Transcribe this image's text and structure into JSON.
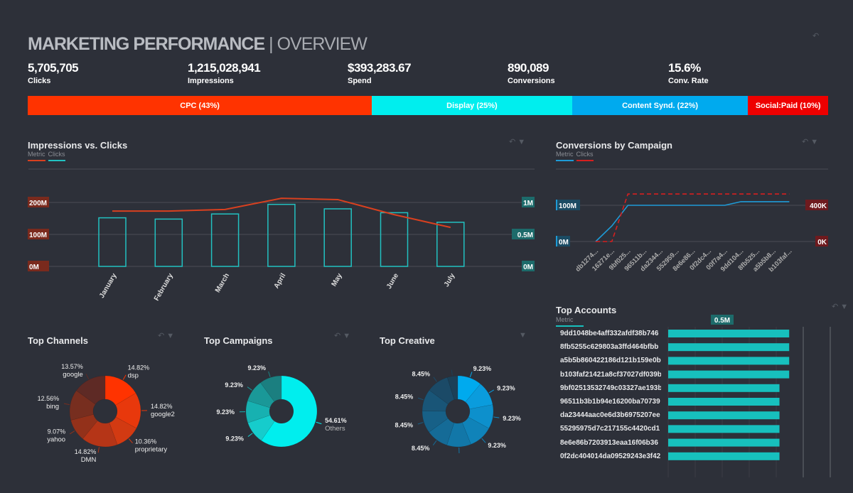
{
  "header": {
    "title": "MARKETING PERFORMANCE",
    "subtitle": "OVERVIEW",
    "separator": "|"
  },
  "kpis": [
    {
      "value": "5,705,705",
      "label": "Clicks"
    },
    {
      "value": "1,215,028,941",
      "label": "Impressions"
    },
    {
      "value": "$393,283.67",
      "label": "Spend"
    },
    {
      "value": "890,089",
      "label": "Conversions"
    },
    {
      "value": "15.6%",
      "label": "Conv. Rate"
    }
  ],
  "channel_mix": [
    {
      "label": "CPC (43%)",
      "percent": 43,
      "color": "#ff3300"
    },
    {
      "label": "Display (25%)",
      "percent": 25,
      "color": "#00eeee"
    },
    {
      "label": "Content Synd. (22%)",
      "percent": 22,
      "color": "#00aaee"
    },
    {
      "label": "Social:Paid (10%)",
      "percent": 10,
      "color": "#ee0000"
    }
  ],
  "chart_data": [
    {
      "id": "impressions_vs_clicks",
      "type": "bar",
      "title": "Impressions vs. Clicks",
      "legend": [
        "Metric",
        "Clicks"
      ],
      "categories": [
        "January",
        "February",
        "March",
        "April",
        "May",
        "June",
        "July"
      ],
      "series": [
        {
          "name": "Metric",
          "kind": "line",
          "axis": "left",
          "color": "#d9401f",
          "values": [
            173,
            173,
            178,
            213,
            209,
            162,
            122
          ]
        },
        {
          "name": "Clicks",
          "kind": "bar",
          "axis": "right",
          "color": "#22c1c1",
          "values": [
            0.76,
            0.74,
            0.82,
            0.97,
            0.9,
            0.84,
            0.69
          ]
        }
      ],
      "left_ticks": [
        "0M",
        "100M",
        "200M"
      ],
      "left_ylim": [
        0,
        200
      ],
      "right_ticks": [
        "0M",
        "0.5M",
        "1M"
      ],
      "right_ylim": [
        0,
        1
      ]
    },
    {
      "id": "conversions_by_campaign",
      "type": "line",
      "title": "Conversions by Campaign",
      "legend": [
        "Metric",
        "Clicks"
      ],
      "categories": [
        "db1274...",
        "16271e...",
        "9bf025...",
        "96511b...",
        "da2344...",
        "552959...",
        "8e6e86...",
        "0f2dc4...",
        "00f7a4...",
        "9dd104...",
        "8fb525...",
        "a5b5b8...",
        "b103faf..."
      ],
      "series": [
        {
          "name": "Metric",
          "axis": "left",
          "color": "#1e9bd7",
          "values": [
            0,
            43,
            100,
            100,
            100,
            100,
            100,
            100,
            100,
            110,
            110,
            110,
            110
          ]
        },
        {
          "name": "Clicks",
          "axis": "right",
          "color": "#d61f1f",
          "dashed": true,
          "values": [
            0,
            0,
            525,
            525,
            525,
            525,
            525,
            525,
            525,
            525,
            525,
            525,
            525
          ]
        }
      ],
      "left_ticks": [
        "0M",
        "100M"
      ],
      "left_ylim": [
        0,
        100
      ],
      "right_ticks": [
        "0K",
        "400K"
      ],
      "right_ylim": [
        0,
        400
      ]
    },
    {
      "id": "top_channels",
      "type": "pie",
      "title": "Top Channels",
      "slices": [
        {
          "label": "dsp",
          "value": 14.82,
          "text": "14.82%",
          "color": "#ff3300"
        },
        {
          "label": "google2",
          "value": 14.82,
          "text": "14.82%",
          "color": "#e8380c"
        },
        {
          "label": "proprietary",
          "value": 10.36,
          "text": "10.36%",
          "color": "#d23a12"
        },
        {
          "label": "DMN",
          "value": 14.82,
          "text": "14.82%",
          "color": "#b53517"
        },
        {
          "label": "yahoo",
          "value": 9.07,
          "text": "9.07%",
          "color": "#93311a"
        },
        {
          "label": "bing",
          "value": 12.56,
          "text": "12.56%",
          "color": "#772e1f"
        },
        {
          "label": "google",
          "value": 13.57,
          "text": "13.57%",
          "color": "#5e2a25"
        }
      ]
    },
    {
      "id": "top_campaigns",
      "type": "pie",
      "title": "Top Campaigns",
      "slices": [
        {
          "label": "Others",
          "value": 54.61,
          "text": "54.61%",
          "color": "#00eeee"
        },
        {
          "label": "",
          "value": 9.23,
          "text": "9.23%",
          "color": "#16cccc"
        },
        {
          "label": "",
          "value": 9.23,
          "text": "9.23%",
          "color": "#17b1b1"
        },
        {
          "label": "",
          "value": 9.23,
          "text": "9.23%",
          "color": "#1a9898"
        },
        {
          "label": "",
          "value": 9.23,
          "text": "9.23%",
          "color": "#1b7f80"
        }
      ]
    },
    {
      "id": "top_creative",
      "type": "pie",
      "title": "Top Creative",
      "slices": [
        {
          "value": 9.23,
          "text": "9.23%",
          "color": "#00aaee"
        },
        {
          "value": 9.23,
          "text": "9.23%",
          "color": "#0a9cdd"
        },
        {
          "value": 9.23,
          "text": "9.23%",
          "color": "#0d90cc"
        },
        {
          "value": 9.23,
          "text": "9.23%",
          "color": "#1083b9"
        },
        {
          "value": 9.23,
          "text": "",
          "color": "#1277a8"
        },
        {
          "value": 8.45,
          "text": "8.45%",
          "color": "#156b97"
        },
        {
          "value": 8.45,
          "text": "8.45%",
          "color": "#176087"
        },
        {
          "value": 8.45,
          "text": "8.45%",
          "color": "#195577"
        },
        {
          "value": 8.45,
          "text": "8.45%",
          "color": "#1b4a67"
        },
        {
          "value": 4,
          "text": "",
          "color": "#1c4057"
        }
      ]
    },
    {
      "id": "top_accounts",
      "type": "bar",
      "orientation": "horizontal",
      "title": "Top Accounts",
      "legend": [
        "Metric"
      ],
      "tick_label": "0.5M",
      "xlim": [
        0,
        1.5
      ],
      "categories": [
        "9dd1048be4aff332afdf38b746",
        "8fb5255c629803a3ffd464bfbb",
        "a5b5b860422186d121b159e0b",
        "b103faf21421a8cf37027df039b",
        "9bf02513532749c03327ae193b",
        "96511b3b1b94e16200ba70739",
        "da23444aac0e6d3b6975207ee",
        "55295975d7c217155c4420cd1",
        "8e6e86b7203913eaa16f06b36",
        "0f2dc404014da09529243e3f42"
      ],
      "values": [
        1.12,
        1.12,
        1.12,
        1.12,
        1.03,
        1.03,
        1.03,
        1.03,
        1.03,
        1.03
      ],
      "color": "#17c0bd"
    }
  ]
}
